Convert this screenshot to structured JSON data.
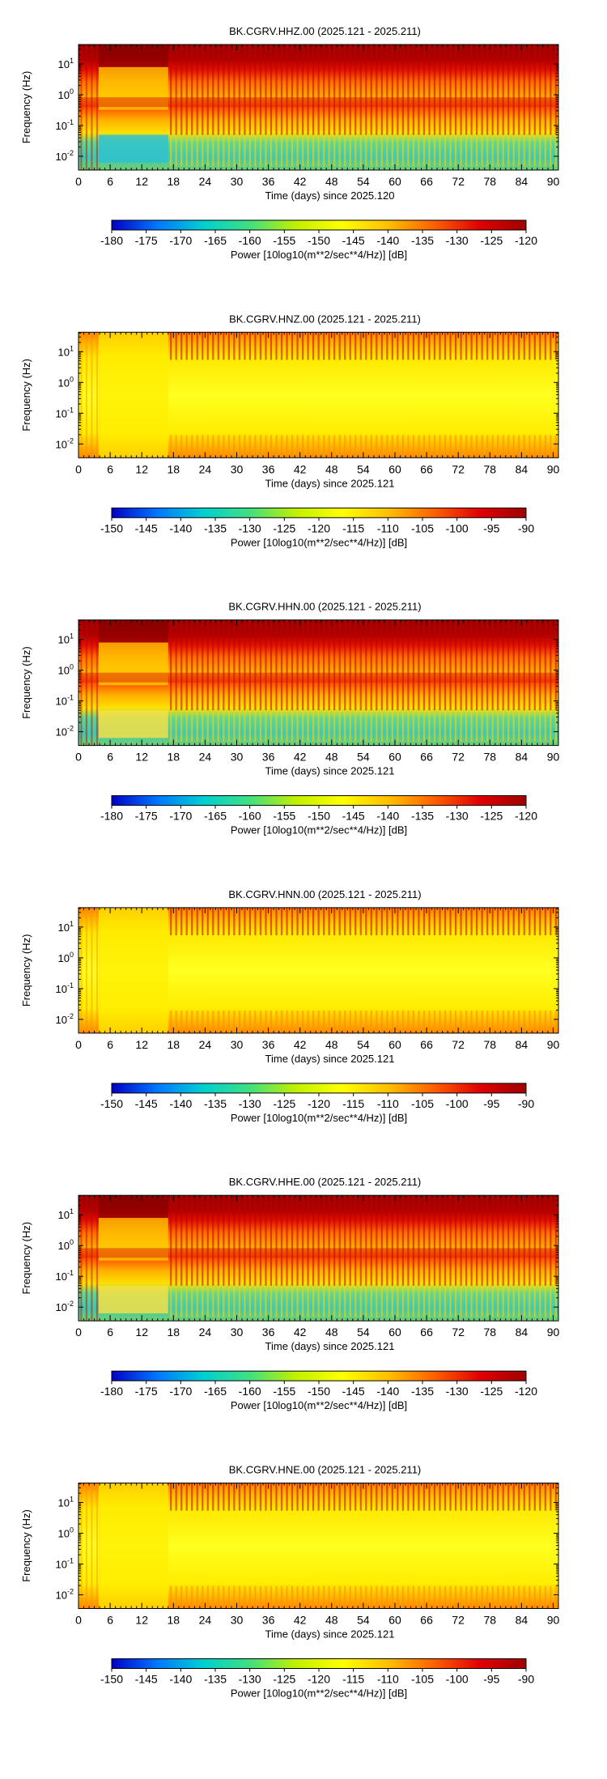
{
  "chart_data": [
    {
      "type": "heatmap",
      "title": "BK.CGRV.HHZ.00 (2025.121 - 2025.211)",
      "xlabel": "Time (days) since 2025.120",
      "ylabel": "Frequency (Hz)",
      "x_ticks": [
        "0",
        "6",
        "12",
        "18",
        "24",
        "30",
        "36",
        "42",
        "48",
        "54",
        "60",
        "66",
        "72",
        "78",
        "84",
        "90"
      ],
      "y_ticks": [
        "10^1",
        "10^0",
        "10^-1",
        "10^-2"
      ],
      "xlim": [
        0,
        91
      ],
      "y_scale": "log",
      "colorbar": {
        "label": "Power [10log10(m**2/sec**4/Hz)] [dB]",
        "ticks": [
          "-180",
          "-175",
          "-170",
          "-165",
          "-160",
          "-155",
          "-150",
          "-145",
          "-140",
          "-135",
          "-130",
          "-125",
          "-120"
        ],
        "range": [
          -180,
          -120
        ]
      }
    },
    {
      "type": "heatmap",
      "title": "BK.CGRV.HNZ.00 (2025.121 - 2025.211)",
      "xlabel": "Time (days) since 2025.121",
      "ylabel": "Frequency (Hz)",
      "x_ticks": [
        "0",
        "6",
        "12",
        "18",
        "24",
        "30",
        "36",
        "42",
        "48",
        "54",
        "60",
        "66",
        "72",
        "78",
        "84",
        "90"
      ],
      "y_ticks": [
        "10^1",
        "10^0",
        "10^-1",
        "10^-2"
      ],
      "xlim": [
        0,
        91
      ],
      "y_scale": "log",
      "colorbar": {
        "label": "Power [10log10(m**2/sec**4/Hz)] [dB]",
        "ticks": [
          "-150",
          "-145",
          "-140",
          "-135",
          "-130",
          "-125",
          "-120",
          "-115",
          "-110",
          "-105",
          "-100",
          "-95",
          "-90"
        ],
        "range": [
          -150,
          -90
        ]
      }
    },
    {
      "type": "heatmap",
      "title": "BK.CGRV.HHN.00 (2025.121 - 2025.211)",
      "xlabel": "Time (days) since 2025.121",
      "ylabel": "Frequency (Hz)",
      "x_ticks": [
        "0",
        "6",
        "12",
        "18",
        "24",
        "30",
        "36",
        "42",
        "48",
        "54",
        "60",
        "66",
        "72",
        "78",
        "84",
        "90"
      ],
      "y_ticks": [
        "10^1",
        "10^0",
        "10^-1",
        "10^-2"
      ],
      "xlim": [
        0,
        91
      ],
      "y_scale": "log",
      "colorbar": {
        "label": "Power [10log10(m**2/sec**4/Hz)] [dB]",
        "ticks": [
          "-180",
          "-175",
          "-170",
          "-165",
          "-160",
          "-155",
          "-150",
          "-145",
          "-140",
          "-135",
          "-130",
          "-125",
          "-120"
        ],
        "range": [
          -180,
          -120
        ]
      }
    },
    {
      "type": "heatmap",
      "title": "BK.CGRV.HNN.00 (2025.121 - 2025.211)",
      "xlabel": "Time (days) since 2025.121",
      "ylabel": "Frequency (Hz)",
      "x_ticks": [
        "0",
        "6",
        "12",
        "18",
        "24",
        "30",
        "36",
        "42",
        "48",
        "54",
        "60",
        "66",
        "72",
        "78",
        "84",
        "90"
      ],
      "y_ticks": [
        "10^1",
        "10^0",
        "10^-1",
        "10^-2"
      ],
      "xlim": [
        0,
        91
      ],
      "y_scale": "log",
      "colorbar": {
        "label": "Power [10log10(m**2/sec**4/Hz)] [dB]",
        "ticks": [
          "-150",
          "-145",
          "-140",
          "-135",
          "-130",
          "-125",
          "-120",
          "-115",
          "-110",
          "-105",
          "-100",
          "-95",
          "-90"
        ],
        "range": [
          -150,
          -90
        ]
      }
    },
    {
      "type": "heatmap",
      "title": "BK.CGRV.HHE.00 (2025.121 - 2025.211)",
      "xlabel": "Time (days) since 2025.121",
      "ylabel": "Frequency (Hz)",
      "x_ticks": [
        "0",
        "6",
        "12",
        "18",
        "24",
        "30",
        "36",
        "42",
        "48",
        "54",
        "60",
        "66",
        "72",
        "78",
        "84",
        "90"
      ],
      "y_ticks": [
        "10^1",
        "10^0",
        "10^-1",
        "10^-2"
      ],
      "xlim": [
        0,
        91
      ],
      "y_scale": "log",
      "colorbar": {
        "label": "Power [10log10(m**2/sec**4/Hz)] [dB]",
        "ticks": [
          "-180",
          "-175",
          "-170",
          "-165",
          "-160",
          "-155",
          "-150",
          "-145",
          "-140",
          "-135",
          "-130",
          "-125",
          "-120"
        ],
        "range": [
          -180,
          -120
        ]
      }
    },
    {
      "type": "heatmap",
      "title": "BK.CGRV.HNE.00 (2025.121 - 2025.211)",
      "xlabel": "Time (days) since 2025.121",
      "ylabel": "Frequency (Hz)",
      "x_ticks": [
        "0",
        "6",
        "12",
        "18",
        "24",
        "30",
        "36",
        "42",
        "48",
        "54",
        "60",
        "66",
        "72",
        "78",
        "84",
        "90"
      ],
      "y_ticks": [
        "10^1",
        "10^0",
        "10^-1",
        "10^-2"
      ],
      "xlim": [
        0,
        91
      ],
      "y_scale": "log",
      "colorbar": {
        "label": "Power [10log10(m**2/sec**4/Hz)] [dB]",
        "ticks": [
          "-150",
          "-145",
          "-140",
          "-135",
          "-130",
          "-125",
          "-120",
          "-115",
          "-110",
          "-105",
          "-100",
          "-95",
          "-90"
        ],
        "range": [
          -150,
          -90
        ]
      }
    }
  ],
  "colormap": [
    "#0000c8",
    "#0078ff",
    "#00d0d0",
    "#40e080",
    "#c0f000",
    "#ffff00",
    "#ffc000",
    "#ff6000",
    "#e00000",
    "#a00000"
  ]
}
